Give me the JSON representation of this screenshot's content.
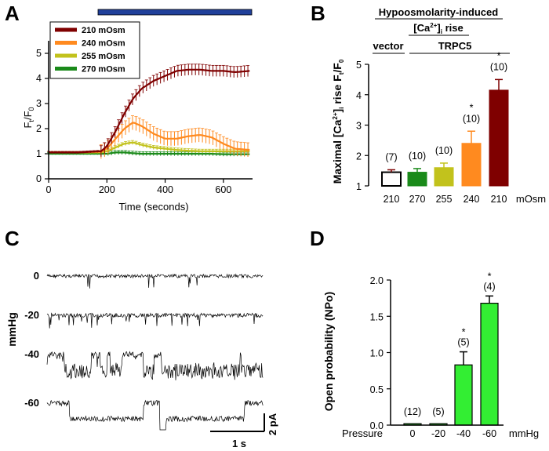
{
  "panels": {
    "a": "A",
    "b": "B",
    "c": "C",
    "d": "D"
  },
  "colors": {
    "dark_red": "#7f0000",
    "orange": "#ff8a1f",
    "yellow_green": "#c2c21c",
    "green": "#1a8a1a",
    "bright_green": "#33ee33",
    "stimulus_bar": "#20409a"
  },
  "chart_data": [
    {
      "id": "A",
      "type": "line",
      "xlabel": "Time (seconds)",
      "ylabel": "Ft/F0",
      "ylabel_main": "F",
      "ylabel_sub1": "t",
      "ylabel_mid": "/F",
      "ylabel_sub2": "0",
      "xlim": [
        0,
        700
      ],
      "ylim": [
        0,
        5.5
      ],
      "xticks": [
        0,
        200,
        400,
        600
      ],
      "yticks": [
        0,
        1,
        2,
        3,
        4,
        5
      ],
      "stimulus": [
        200,
        700
      ],
      "series": [
        {
          "name": "210 mOsm",
          "color": "#7f0000",
          "x": [
            0,
            100,
            180,
            200,
            230,
            260,
            290,
            320,
            360,
            400,
            440,
            480,
            520,
            560,
            600,
            640,
            690
          ],
          "y": [
            1.05,
            1.05,
            1.1,
            1.3,
            1.9,
            2.6,
            3.2,
            3.6,
            3.9,
            4.1,
            4.3,
            4.35,
            4.35,
            4.3,
            4.3,
            4.25,
            4.3
          ]
        },
        {
          "name": "240 mOsm",
          "color": "#ff8a1f",
          "x": [
            0,
            100,
            180,
            200,
            230,
            260,
            290,
            320,
            360,
            400,
            440,
            480,
            520,
            560,
            600,
            640,
            690
          ],
          "y": [
            1.05,
            1.05,
            1.08,
            1.2,
            1.6,
            2.0,
            2.25,
            2.1,
            1.8,
            1.6,
            1.6,
            1.7,
            1.75,
            1.65,
            1.4,
            1.2,
            1.15
          ]
        },
        {
          "name": "255 mOsm",
          "color": "#c2c21c",
          "x": [
            0,
            100,
            180,
            200,
            230,
            260,
            290,
            320,
            360,
            400,
            440,
            480,
            520,
            560,
            600,
            640,
            690
          ],
          "y": [
            1.05,
            1.05,
            1.05,
            1.1,
            1.25,
            1.4,
            1.45,
            1.35,
            1.25,
            1.2,
            1.15,
            1.12,
            1.1,
            1.1,
            1.1,
            1.1,
            1.1
          ]
        },
        {
          "name": "270 mOsm",
          "color": "#1a8a1a",
          "x": [
            0,
            100,
            180,
            200,
            230,
            260,
            290,
            320,
            360,
            400,
            440,
            480,
            520,
            560,
            600,
            640,
            690
          ],
          "y": [
            1.0,
            1.0,
            1.0,
            1.0,
            1.05,
            1.05,
            1.02,
            1.0,
            1.0,
            1.0,
            1.0,
            1.0,
            1.0,
            1.0,
            0.98,
            0.98,
            0.98
          ]
        }
      ]
    },
    {
      "id": "B",
      "type": "bar",
      "title_line1": "Hypoosmolarity-induced",
      "title_line2_pre": "[Ca",
      "title_line2_sup": "2+",
      "title_line2_post": "]",
      "title_line2_sub": "i",
      "title_line2_end": " rise",
      "group_vector": "vector",
      "group_trpc5": "TRPC5",
      "ylabel": "Maximal [Ca2+]i rise Ft/F0",
      "ylabel_p1": "Maximal [Ca",
      "ylabel_sup": "2+",
      "ylabel_p2": "]",
      "ylabel_sub1": "i",
      "ylabel_p3": " rise F",
      "ylabel_sub2": "t",
      "ylabel_p4": "/F",
      "ylabel_sub3": "0",
      "ylim": [
        1,
        5
      ],
      "yticks": [
        1,
        2,
        3,
        4,
        5
      ],
      "unit": "mOsm",
      "categories": [
        "210",
        "270",
        "255",
        "240",
        "210"
      ],
      "values": [
        1.45,
        1.45,
        1.6,
        2.4,
        4.15
      ],
      "errors": [
        0.08,
        0.12,
        0.15,
        0.4,
        0.35
      ],
      "colors": [
        "#ffffff",
        "#1a8a1a",
        "#c2c21c",
        "#ff8a1f",
        "#7f0000"
      ],
      "n_labels": [
        "(7)",
        "(10)",
        "(10)",
        "(10)",
        "(10)"
      ],
      "significance": [
        "",
        "",
        "",
        "*",
        "*"
      ]
    },
    {
      "id": "C",
      "type": "traces",
      "ylabel": "mmHg",
      "trace_labels": [
        "0",
        "-20",
        "-40",
        "-60"
      ],
      "scale_time": "1 s",
      "scale_current": "2 pA"
    },
    {
      "id": "D",
      "type": "bar",
      "ylabel": "Open probability (NPo)",
      "xlabel_prefix": "Pressure",
      "unit": "mmHg",
      "ylim": [
        0,
        2.0
      ],
      "yticks": [
        "0.0",
        "0.5",
        "1.0",
        "1.5",
        "2.0"
      ],
      "categories": [
        "0",
        "-20",
        "-40",
        "-60"
      ],
      "values": [
        0.02,
        0.02,
        0.83,
        1.68
      ],
      "errors": [
        0.0,
        0.0,
        0.18,
        0.1
      ],
      "n_labels": [
        "(12)",
        "(5)",
        "(5)",
        "(4)"
      ],
      "significance": [
        "",
        "",
        "*",
        "*"
      ]
    }
  ]
}
